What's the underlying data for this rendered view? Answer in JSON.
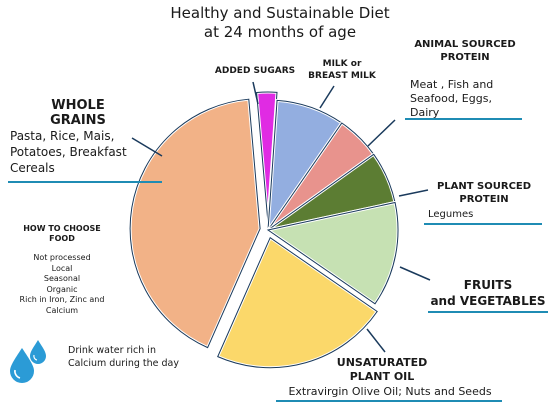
{
  "title_line1": "Healthy and Sustainable Diet",
  "title_line2": "at 24 months of age",
  "labels": {
    "whole_grains": "WHOLE GRAINS",
    "whole_grains_desc": "Pasta, Rice, Mais, Potatoes, Breakfast Cereals",
    "added_sugars": "ADDED SUGARS",
    "milk_line1": "MILK or",
    "milk_line2": "BREAST MILK",
    "animal_line1": "ANIMAL SOURCED",
    "animal_line2": "PROTEIN",
    "animal_desc": "Meat , Fish and Seafood, Eggs, Dairy",
    "plant_line1": "PLANT SOURCED",
    "plant_line2": "PROTEIN",
    "plant_desc": "Legumes",
    "fruits_line1": "FRUITS",
    "fruits_line2": "and VEGETABLES",
    "oil_line1": "UNSATURATED",
    "oil_line2": "PLANT OIL",
    "oil_desc": "Extravirgin Olive Oil; Nuts and Seeds"
  },
  "how_to_choose": {
    "title_line1": "HOW TO CHOOSE",
    "title_line2": "FOOD",
    "items": [
      "Not processed",
      "Local",
      "Seasonal",
      "Organic",
      "Rich in Iron, Zinc and",
      "Calcium"
    ]
  },
  "water_note_line1": "Drink water rich in",
  "water_note_line2": "Calcium during the day",
  "colors": {
    "accent_line": "#1f8cb4",
    "water_drop": "#2b9bd6"
  },
  "chart_data": {
    "type": "pie",
    "start_angle_deg": -5,
    "exploded_offset": 0,
    "slices": [
      {
        "key": "added_sugars",
        "value": 2.5,
        "color": "#e02be3",
        "explode": true
      },
      {
        "key": "milk",
        "value": 8.5,
        "color": "#93aee0",
        "explode": false
      },
      {
        "key": "animal",
        "value": 5.5,
        "color": "#e8938d",
        "explode": false
      },
      {
        "key": "plant",
        "value": 6.5,
        "color": "#5c7d33",
        "explode": false
      },
      {
        "key": "fruits",
        "value": 13,
        "color": "#c6e1b3",
        "explode": false
      },
      {
        "key": "oil",
        "value": 22,
        "color": "#fbd86a",
        "explode": true
      },
      {
        "key": "whole_grains",
        "value": 42,
        "color": "#f2b287",
        "explode": true
      }
    ]
  }
}
